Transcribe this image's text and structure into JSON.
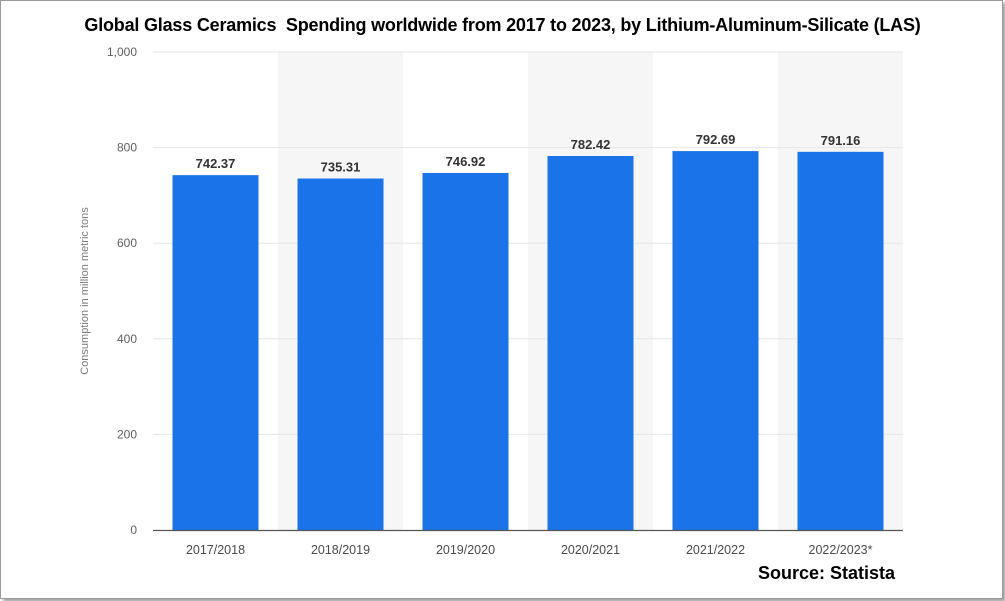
{
  "title": "Global Glass Ceramics  Spending worldwide from 2017 to 2023, by Lithium-Aluminum-Silicate (LAS)",
  "source": "Source: Statista",
  "colors": {
    "bar": "#1a73e8",
    "band": "#f6f6f6",
    "grid": "#e6e6e6",
    "axis": "#555555"
  },
  "chart_data": {
    "type": "bar",
    "categories": [
      "2017/2018",
      "2018/2019",
      "2019/2020",
      "2020/2021",
      "2021/2022",
      "2022/2023*"
    ],
    "values": [
      742.37,
      735.31,
      746.92,
      782.42,
      792.69,
      791.16
    ],
    "value_labels": [
      "742.37",
      "735.31",
      "746.92",
      "782.42",
      "792.69",
      "791.16"
    ],
    "ylabel": "Consumption in million metric tons",
    "xlabel": "",
    "ylim": [
      0,
      1000
    ],
    "yticks": [
      0,
      200,
      400,
      600,
      800,
      1000
    ],
    "ytick_labels": [
      "0",
      "200",
      "400",
      "600",
      "800",
      "1,000"
    ],
    "grid": true,
    "alternating_bands": true
  }
}
